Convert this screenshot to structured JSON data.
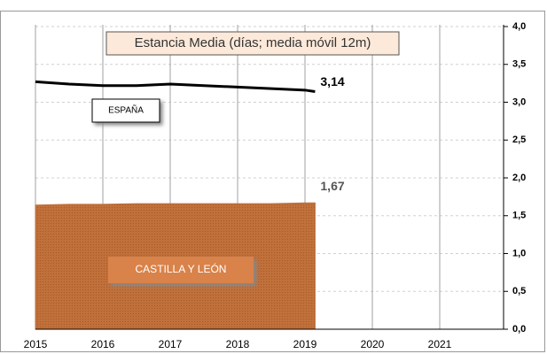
{
  "chart_data": {
    "type": "line-area",
    "title": "Estancia Media (días; media móvil 12m)",
    "x": [
      2015,
      2015.5,
      2016,
      2016.5,
      2017,
      2017.5,
      2018,
      2018.5,
      2019,
      2019.15
    ],
    "series": [
      {
        "name": "ESPAÑA",
        "kind": "line",
        "color": "#000000",
        "values": [
          3.27,
          3.24,
          3.22,
          3.22,
          3.24,
          3.22,
          3.2,
          3.18,
          3.16,
          3.14
        ],
        "value_labels": [
          null,
          null,
          null,
          null,
          null,
          null,
          null,
          null,
          null,
          "3,14"
        ]
      },
      {
        "name": "CASTILLA Y LEÓN",
        "kind": "area",
        "color": "#c0703a",
        "values": [
          1.64,
          1.65,
          1.65,
          1.66,
          1.66,
          1.66,
          1.66,
          1.66,
          1.67,
          1.67
        ],
        "value_labels": [
          null,
          null,
          null,
          null,
          null,
          null,
          null,
          null,
          null,
          "1,67"
        ]
      }
    ],
    "xlim": [
      2015,
      2022
    ],
    "xticks": [
      2015,
      2016,
      2017,
      2018,
      2019,
      2020,
      2021
    ],
    "ylim": [
      0,
      4
    ],
    "yticks": [
      {
        "value": 0,
        "label": "0,0"
      },
      {
        "value": 0.5,
        "label": "0,5"
      },
      {
        "value": 1,
        "label": "1,0"
      },
      {
        "value": 1.5,
        "label": "1,5"
      },
      {
        "value": 2,
        "label": "2,0"
      },
      {
        "value": 2.5,
        "label": "2,5"
      },
      {
        "value": 3,
        "label": "3,0"
      },
      {
        "value": 3.5,
        "label": "3,5"
      },
      {
        "value": 4,
        "label": "4,0"
      }
    ],
    "grid": true
  }
}
